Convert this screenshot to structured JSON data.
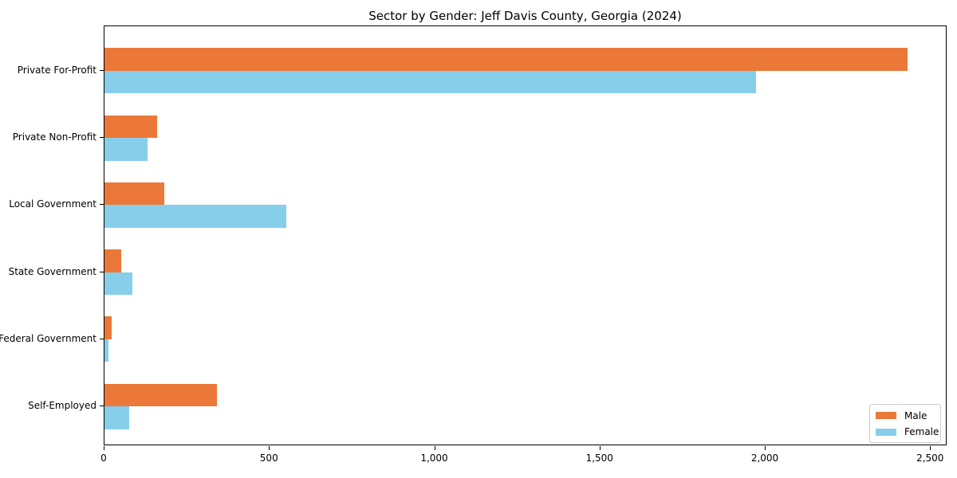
{
  "chart_data": {
    "type": "bar",
    "orientation": "horizontal",
    "title": "Sector by Gender: Jeff Davis County, Georgia (2024)",
    "categories": [
      "Private For-Profit",
      "Private Non-Profit",
      "Local Government",
      "State Government",
      "Federal Government",
      "Self-Employed"
    ],
    "series": [
      {
        "name": "Male",
        "color": "#EB7839",
        "values": [
          2430,
          160,
          180,
          50,
          22,
          340
        ]
      },
      {
        "name": "Female",
        "color": "#87CEEB",
        "values": [
          1970,
          130,
          550,
          85,
          12,
          75
        ]
      }
    ],
    "xlabel": "",
    "ylabel": "",
    "xlim": [
      0,
      2550
    ],
    "x_ticks": [
      0,
      500,
      1000,
      1500,
      2000,
      2500
    ],
    "x_tick_labels": [
      "0",
      "500",
      "1,000",
      "1,500",
      "2,000",
      "2,500"
    ],
    "grid": false,
    "legend": {
      "position": "lower right",
      "entries": [
        "Male",
        "Female"
      ]
    },
    "colors": {
      "background": "#ffffff",
      "spine": "#000000",
      "legend_border": "#cccccc",
      "text": "#000000"
    }
  }
}
